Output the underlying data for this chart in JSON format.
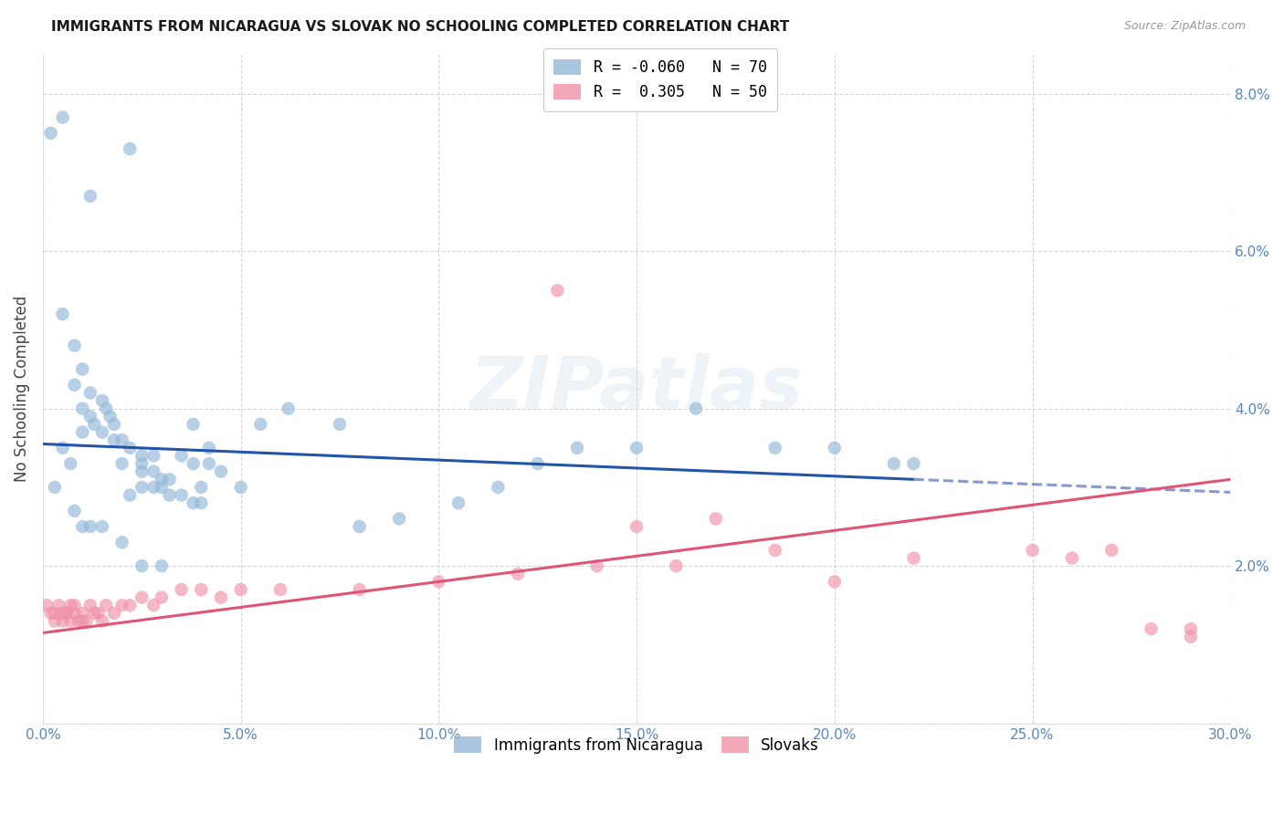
{
  "title": "IMMIGRANTS FROM NICARAGUA VS SLOVAK NO SCHOOLING COMPLETED CORRELATION CHART",
  "source": "Source: ZipAtlas.com",
  "ylabel_label": "No Schooling Completed",
  "xmin": 0.0,
  "xmax": 0.3,
  "ymin": 0.0,
  "ymax": 0.085,
  "xticks": [
    0.0,
    0.05,
    0.1,
    0.15,
    0.2,
    0.25,
    0.3
  ],
  "yticks": [
    0.0,
    0.02,
    0.04,
    0.06,
    0.08
  ],
  "ytick_labels": [
    "",
    "2.0%",
    "4.0%",
    "6.0%",
    "8.0%"
  ],
  "xtick_labels": [
    "0.0%",
    "5.0%",
    "10.0%",
    "15.0%",
    "20.0%",
    "25.0%",
    "30.0%"
  ],
  "nicaragua_color": "#92b8d8",
  "slovak_color": "#f093a8",
  "nicaragua_line_color": "#2255aa",
  "slovak_line_color": "#e05575",
  "nicaragua_line_dash_color": "#8899cc",
  "watermark_text": "ZIPatlas",
  "background_color": "#ffffff",
  "grid_color": "#cccccc",
  "tick_label_color": "#5588bb",
  "legend1_label1": "R = -0.060",
  "legend1_n1": "N = 70",
  "legend1_label2": "R =  0.305",
  "legend1_n2": "N = 50",
  "legend2_label1": "Immigrants from Nicaragua",
  "legend2_label2": "Slovaks",
  "nic_line_x0": 0.0,
  "nic_line_y0": 0.0355,
  "nic_line_x1": 0.22,
  "nic_line_y1": 0.031,
  "nic_line_xdash0": 0.22,
  "nic_line_xdash1": 0.3,
  "slo_line_x0": 0.0,
  "slo_line_y0": 0.0115,
  "slo_line_x1": 0.3,
  "slo_line_y1": 0.031,
  "nicaragua_points_x": [
    0.005,
    0.022,
    0.012,
    0.005,
    0.008,
    0.01,
    0.008,
    0.012,
    0.015,
    0.016,
    0.017,
    0.018,
    0.01,
    0.012,
    0.013,
    0.01,
    0.015,
    0.018,
    0.02,
    0.022,
    0.025,
    0.028,
    0.025,
    0.02,
    0.025,
    0.028,
    0.03,
    0.032,
    0.025,
    0.03,
    0.032,
    0.028,
    0.022,
    0.035,
    0.038,
    0.04,
    0.042,
    0.038,
    0.042,
    0.035,
    0.038,
    0.045,
    0.04,
    0.05,
    0.055,
    0.062,
    0.075,
    0.08,
    0.09,
    0.105,
    0.115,
    0.125,
    0.135,
    0.15,
    0.165,
    0.185,
    0.2,
    0.215,
    0.005,
    0.007,
    0.003,
    0.008,
    0.01,
    0.012,
    0.015,
    0.02,
    0.025,
    0.03,
    0.22,
    0.002
  ],
  "nicaragua_points_y": [
    0.077,
    0.073,
    0.067,
    0.052,
    0.048,
    0.045,
    0.043,
    0.042,
    0.041,
    0.04,
    0.039,
    0.038,
    0.04,
    0.039,
    0.038,
    0.037,
    0.037,
    0.036,
    0.036,
    0.035,
    0.034,
    0.034,
    0.033,
    0.033,
    0.032,
    0.032,
    0.031,
    0.031,
    0.03,
    0.03,
    0.029,
    0.03,
    0.029,
    0.029,
    0.028,
    0.028,
    0.033,
    0.033,
    0.035,
    0.034,
    0.038,
    0.032,
    0.03,
    0.03,
    0.038,
    0.04,
    0.038,
    0.025,
    0.026,
    0.028,
    0.03,
    0.033,
    0.035,
    0.035,
    0.04,
    0.035,
    0.035,
    0.033,
    0.035,
    0.033,
    0.03,
    0.027,
    0.025,
    0.025,
    0.025,
    0.023,
    0.02,
    0.02,
    0.033,
    0.075
  ],
  "slovak_points_x": [
    0.001,
    0.002,
    0.003,
    0.003,
    0.004,
    0.005,
    0.005,
    0.006,
    0.006,
    0.007,
    0.007,
    0.008,
    0.008,
    0.009,
    0.01,
    0.01,
    0.011,
    0.012,
    0.013,
    0.014,
    0.015,
    0.016,
    0.018,
    0.02,
    0.022,
    0.025,
    0.028,
    0.03,
    0.035,
    0.04,
    0.045,
    0.05,
    0.06,
    0.08,
    0.1,
    0.12,
    0.14,
    0.16,
    0.185,
    0.22,
    0.25,
    0.26,
    0.27,
    0.28,
    0.29,
    0.29,
    0.13,
    0.15,
    0.17,
    0.2
  ],
  "slovak_points_y": [
    0.015,
    0.014,
    0.014,
    0.013,
    0.015,
    0.014,
    0.013,
    0.014,
    0.014,
    0.015,
    0.013,
    0.015,
    0.014,
    0.013,
    0.014,
    0.013,
    0.013,
    0.015,
    0.014,
    0.014,
    0.013,
    0.015,
    0.014,
    0.015,
    0.015,
    0.016,
    0.015,
    0.016,
    0.017,
    0.017,
    0.016,
    0.017,
    0.017,
    0.017,
    0.018,
    0.019,
    0.02,
    0.02,
    0.022,
    0.021,
    0.022,
    0.021,
    0.022,
    0.012,
    0.012,
    0.011,
    0.055,
    0.025,
    0.026,
    0.018
  ]
}
